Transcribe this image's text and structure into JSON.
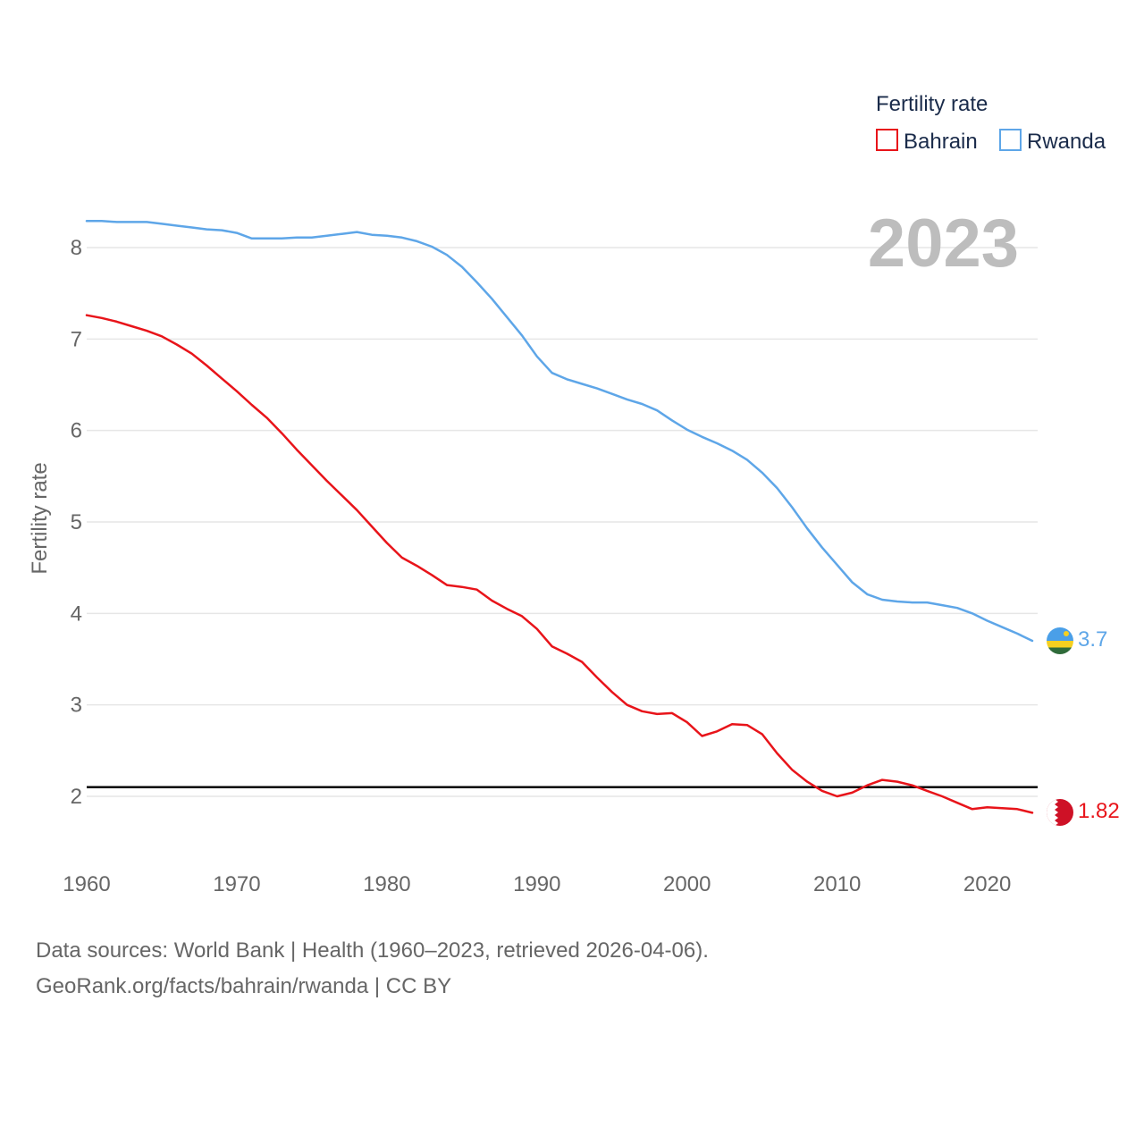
{
  "chart_data": {
    "type": "line",
    "title": "",
    "ylabel": "Fertility rate",
    "xlabel": "",
    "year_label": "2023",
    "legend": {
      "title": "Fertility rate",
      "position": "top-right"
    },
    "xlim": [
      1960,
      2023
    ],
    "ylim": [
      1.45,
      8.6
    ],
    "xticks": [
      1960,
      1970,
      1980,
      1990,
      2000,
      2010,
      2020
    ],
    "yticks": [
      2,
      3,
      4,
      5,
      6,
      7,
      8
    ],
    "grid": true,
    "reference_line": {
      "y": 2.1
    },
    "x": [
      1960,
      1961,
      1962,
      1963,
      1964,
      1965,
      1966,
      1967,
      1968,
      1969,
      1970,
      1971,
      1972,
      1973,
      1974,
      1975,
      1976,
      1977,
      1978,
      1979,
      1980,
      1981,
      1982,
      1983,
      1984,
      1985,
      1986,
      1987,
      1988,
      1989,
      1990,
      1991,
      1992,
      1993,
      1994,
      1995,
      1996,
      1997,
      1998,
      1999,
      2000,
      2001,
      2002,
      2003,
      2004,
      2005,
      2006,
      2007,
      2008,
      2009,
      2010,
      2011,
      2012,
      2013,
      2014,
      2015,
      2016,
      2017,
      2018,
      2019,
      2020,
      2021,
      2022,
      2023
    ],
    "series": [
      {
        "name": "Bahrain",
        "color": "#e8141a",
        "end_label": "1.82",
        "flag": "bahrain-flag-icon",
        "values": [
          7.26,
          7.23,
          7.19,
          7.14,
          7.09,
          7.03,
          6.94,
          6.84,
          6.71,
          6.57,
          6.43,
          6.28,
          6.14,
          5.97,
          5.79,
          5.62,
          5.45,
          5.29,
          5.13,
          4.95,
          4.77,
          4.61,
          4.52,
          4.42,
          4.31,
          4.29,
          4.26,
          4.14,
          4.05,
          3.97,
          3.83,
          3.64,
          3.56,
          3.47,
          3.3,
          3.14,
          3.0,
          2.93,
          2.9,
          2.91,
          2.81,
          2.66,
          2.71,
          2.79,
          2.78,
          2.68,
          2.47,
          2.29,
          2.16,
          2.06,
          2.0,
          2.04,
          2.12,
          2.18,
          2.16,
          2.12,
          2.06,
          2.0,
          1.93,
          1.86,
          1.88,
          1.87,
          1.86,
          1.82
        ]
      },
      {
        "name": "Rwanda",
        "color": "#5ea6e8",
        "end_label": "3.7",
        "flag": "rwanda-flag-icon",
        "values": [
          8.29,
          8.29,
          8.28,
          8.28,
          8.28,
          8.26,
          8.24,
          8.22,
          8.2,
          8.19,
          8.16,
          8.1,
          8.1,
          8.1,
          8.11,
          8.11,
          8.13,
          8.15,
          8.17,
          8.14,
          8.13,
          8.11,
          8.07,
          8.01,
          7.92,
          7.79,
          7.62,
          7.44,
          7.24,
          7.04,
          6.81,
          6.63,
          6.56,
          6.51,
          6.46,
          6.4,
          6.34,
          6.29,
          6.22,
          6.11,
          6.01,
          5.93,
          5.86,
          5.78,
          5.68,
          5.54,
          5.37,
          5.16,
          4.93,
          4.72,
          4.53,
          4.34,
          4.21,
          4.15,
          4.13,
          4.12,
          4.12,
          4.09,
          4.06,
          4.0,
          3.92,
          3.85,
          3.78,
          3.7
        ]
      }
    ]
  },
  "footer": {
    "line1": "Data sources: World Bank | Health (1960–2023, retrieved 2026-04-06).",
    "line2": "GeoRank.org/facts/bahrain/rwanda | CC BY"
  }
}
